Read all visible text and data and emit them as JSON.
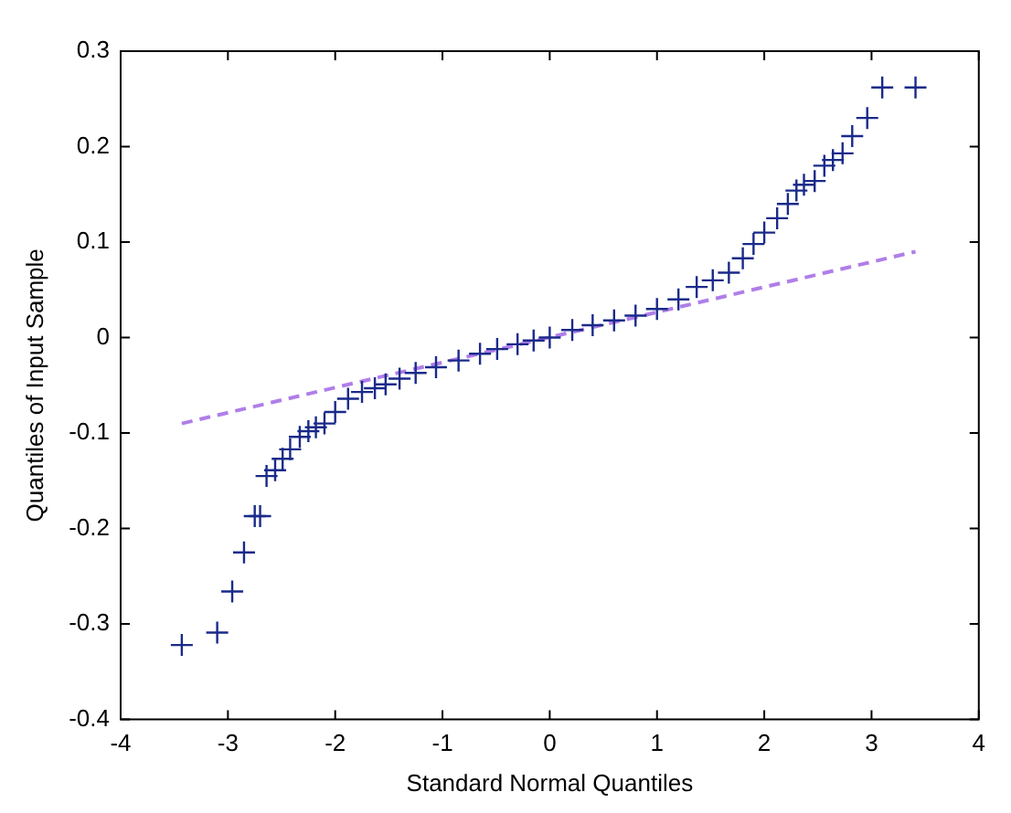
{
  "chart_data": {
    "type": "scatter",
    "xlabel": "Standard Normal Quantiles",
    "ylabel": "Quantiles of Input Sample",
    "xlim": [
      -4,
      4
    ],
    "xticks": [
      -4,
      -3,
      -2,
      -1,
      0,
      1,
      2,
      3,
      4
    ],
    "ylim": [
      -0.4,
      0.3
    ],
    "yticks": [
      -0.4,
      -0.3,
      -0.2,
      -0.1,
      0,
      0.1,
      0.2,
      0.3
    ],
    "grid": false,
    "legend": false,
    "marker": "cross",
    "series": [
      {
        "color": "#1a2a8a",
        "x": [
          -3.43,
          -3.1,
          -2.96,
          -2.85,
          -2.75,
          -2.7,
          -2.64,
          -2.56,
          -2.49,
          -2.42,
          -2.33,
          -2.25,
          -2.18,
          -2.1,
          -2.0,
          -1.88,
          -1.75,
          -1.63,
          -1.53,
          -1.4,
          -1.25,
          -1.06,
          -0.85,
          -0.65,
          -0.49,
          -0.3,
          -0.15,
          0.0,
          0.21,
          0.4,
          0.6,
          0.8,
          1.0,
          1.2,
          1.37,
          1.52,
          1.67,
          1.8,
          1.9,
          2.0,
          2.12,
          2.22,
          2.3,
          2.37,
          2.47,
          2.56,
          2.64,
          2.73,
          2.82,
          2.96,
          3.1,
          3.41
        ],
        "values": [
          -0.322,
          -0.309,
          -0.266,
          -0.225,
          -0.187,
          -0.187,
          -0.145,
          -0.139,
          -0.127,
          -0.117,
          -0.104,
          -0.098,
          -0.094,
          -0.09,
          -0.078,
          -0.064,
          -0.057,
          -0.053,
          -0.049,
          -0.043,
          -0.037,
          -0.031,
          -0.024,
          -0.017,
          -0.012,
          -0.007,
          -0.003,
          0.0,
          0.008,
          0.013,
          0.018,
          0.023,
          0.03,
          0.04,
          0.053,
          0.06,
          0.068,
          0.083,
          0.098,
          0.11,
          0.125,
          0.14,
          0.154,
          0.16,
          0.164,
          0.18,
          0.186,
          0.193,
          0.211,
          0.23,
          0.262,
          0.262
        ]
      },
      {
        "type": "line",
        "color": "#b07ee8",
        "line_style": "dashed",
        "marker": "none",
        "x": [
          -3.43,
          3.41
        ],
        "values": [
          -0.09,
          0.09
        ]
      }
    ]
  }
}
